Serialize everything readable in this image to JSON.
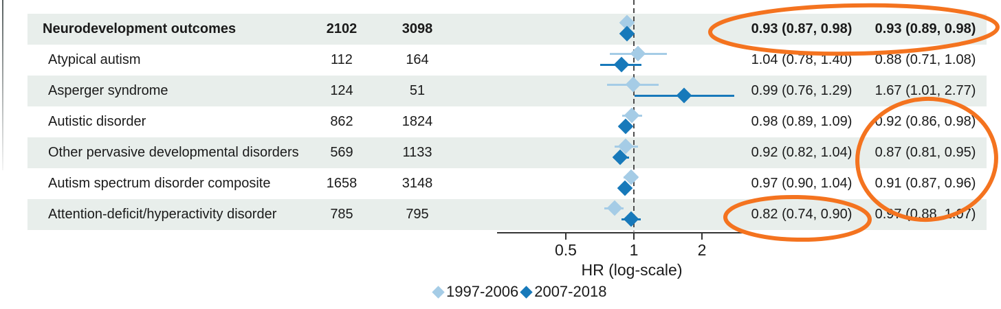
{
  "chart_data": {
    "type": "scatter",
    "subtype": "forest-plot",
    "title": "",
    "xlabel": "HR (log-scale)",
    "x_scale": "log",
    "x_ticks": [
      "0.5",
      "1",
      "2"
    ],
    "x_axis_range_approx": [
      0.25,
      3.1
    ],
    "reference_line": 1,
    "grid": false,
    "legend_position": "bottom",
    "categories": [
      "Neurodevelopment outcomes",
      "Atypical autism",
      "Asperger syndrome",
      "Autistic disorder",
      "Other pervasive developmental disorders",
      "Autism spectrum disorder composite",
      "Attention-deficit/hyperactivity disorder"
    ],
    "series": [
      {
        "name": "1997-2006",
        "color": "#a5cce6",
        "values": [
          {
            "est": 0.93,
            "lo": 0.87,
            "hi": 0.98
          },
          {
            "est": 1.04,
            "lo": 0.78,
            "hi": 1.4
          },
          {
            "est": 0.99,
            "lo": 0.76,
            "hi": 1.29
          },
          {
            "est": 0.98,
            "lo": 0.89,
            "hi": 1.09
          },
          {
            "est": 0.92,
            "lo": 0.82,
            "hi": 1.04
          },
          {
            "est": 0.97,
            "lo": 0.9,
            "hi": 1.04
          },
          {
            "est": 0.82,
            "lo": 0.74,
            "hi": 0.9
          }
        ]
      },
      {
        "name": "2007-2018",
        "color": "#1779ba",
        "values": [
          {
            "est": 0.93,
            "lo": 0.89,
            "hi": 0.98
          },
          {
            "est": 0.88,
            "lo": 0.71,
            "hi": 1.08
          },
          {
            "est": 1.67,
            "lo": 1.01,
            "hi": 2.77
          },
          {
            "est": 0.92,
            "lo": 0.86,
            "hi": 0.98
          },
          {
            "est": 0.87,
            "lo": 0.81,
            "hi": 0.95
          },
          {
            "est": 0.91,
            "lo": 0.87,
            "hi": 0.96
          },
          {
            "est": 0.97,
            "lo": 0.88,
            "hi": 1.07
          }
        ]
      }
    ]
  },
  "table": {
    "rows": [
      {
        "label": "Neurodevelopment outcomes",
        "n1": "2102",
        "n2": "3098",
        "hr1": "0.93 (0.87, 0.98)",
        "hr2": "0.93 (0.89, 0.98)",
        "bold": true,
        "shaded": true
      },
      {
        "label": "Atypical autism",
        "n1": "112",
        "n2": "164",
        "hr1": "1.04 (0.78, 1.40)",
        "hr2": "0.88 (0.71, 1.08)",
        "bold": false,
        "shaded": false
      },
      {
        "label": "Asperger syndrome",
        "n1": "124",
        "n2": "51",
        "hr1": "0.99 (0.76, 1.29)",
        "hr2": "1.67 (1.01, 2.77)",
        "bold": false,
        "shaded": true
      },
      {
        "label": "Autistic disorder",
        "n1": "862",
        "n2": "1824",
        "hr1": "0.98 (0.89, 1.09)",
        "hr2": "0.92 (0.86, 0.98)",
        "bold": false,
        "shaded": false
      },
      {
        "label": "Other pervasive developmental disorders",
        "n1": "569",
        "n2": "1133",
        "hr1": "0.92 (0.82, 1.04)",
        "hr2": "0.87 (0.81, 0.95)",
        "bold": false,
        "shaded": true
      },
      {
        "label": "Autism spectrum disorder composite",
        "n1": "1658",
        "n2": "3148",
        "hr1": "0.97 (0.90, 1.04)",
        "hr2": "0.91 (0.87, 0.96)",
        "bold": false,
        "shaded": false
      },
      {
        "label": "Attention-deficit/hyperactivity disorder",
        "n1": "785",
        "n2": "795",
        "hr1": "0.82 (0.74, 0.90)",
        "hr2": "0.97 (0.88, 1.07)",
        "bold": false,
        "shaded": true
      }
    ]
  },
  "axis": {
    "label": "HR (log-scale)",
    "ticks": [
      "0.5",
      "1",
      "2"
    ]
  },
  "legend": {
    "items": [
      {
        "label": "1997-2006"
      },
      {
        "label": "2007-2018"
      }
    ]
  },
  "annotations": {
    "ellipse_color": "#f4731f",
    "ellipses": [
      {
        "circles": "Overall neurodevelopment outcomes HRs for both periods: 0.93 (0.87, 0.98) and 0.93 (0.89, 0.98)"
      },
      {
        "circles": "2007-2018 HRs for Autistic disorder, Other pervasive developmental disorders and Autism spectrum disorder composite: 0.92 (0.86, 0.98), 0.87 (0.81, 0.95), 0.91 (0.87, 0.96)"
      },
      {
        "circles": "1997-2006 HR for Attention-deficit/hyperactivity disorder: 0.82 (0.74, 0.90)"
      }
    ]
  },
  "colors": {
    "band": "#e8eeeb",
    "series_light": "#a5cce6",
    "series_dark": "#1779ba",
    "annotation_orange": "#f4731f",
    "text": "#1a1a1a",
    "axis": "#333333"
  }
}
